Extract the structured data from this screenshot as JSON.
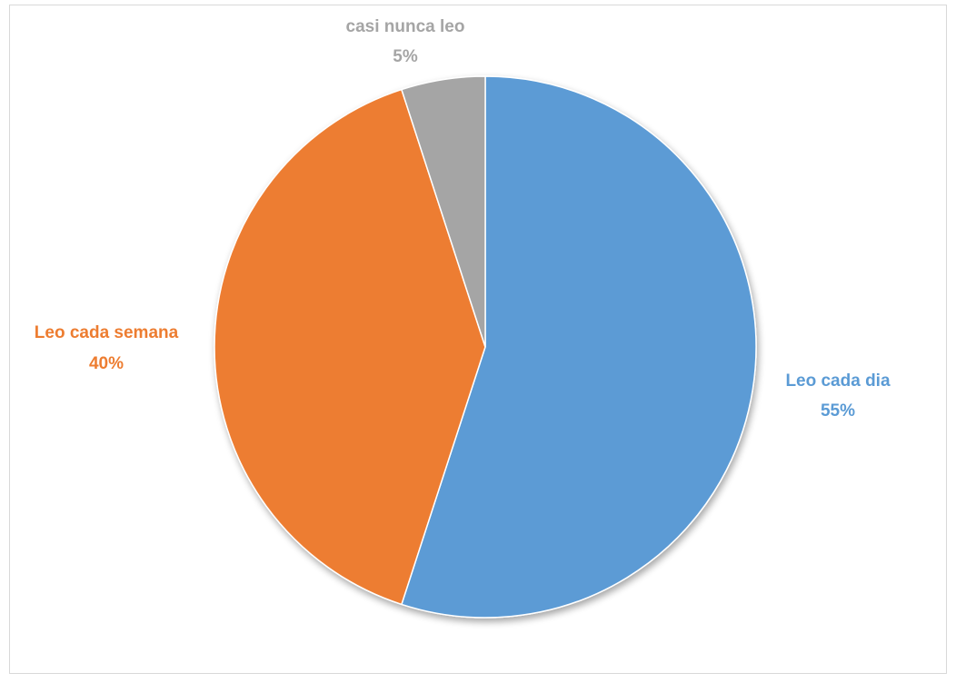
{
  "chart_data": {
    "type": "pie",
    "title": "",
    "slices": [
      {
        "label": "Leo cada dia",
        "value": 55,
        "percent_label": "55%",
        "color": "#5b9bd5"
      },
      {
        "label": "Leo cada semana",
        "value": 40,
        "percent_label": "40%",
        "color": "#ed7d31"
      },
      {
        "label": "casi nunca leo",
        "value": 5,
        "percent_label": "5%",
        "color": "#a5a5a5"
      }
    ],
    "start": "12 o'clock",
    "direction": "clockwise",
    "legend": "none",
    "data_labels": "outside"
  }
}
